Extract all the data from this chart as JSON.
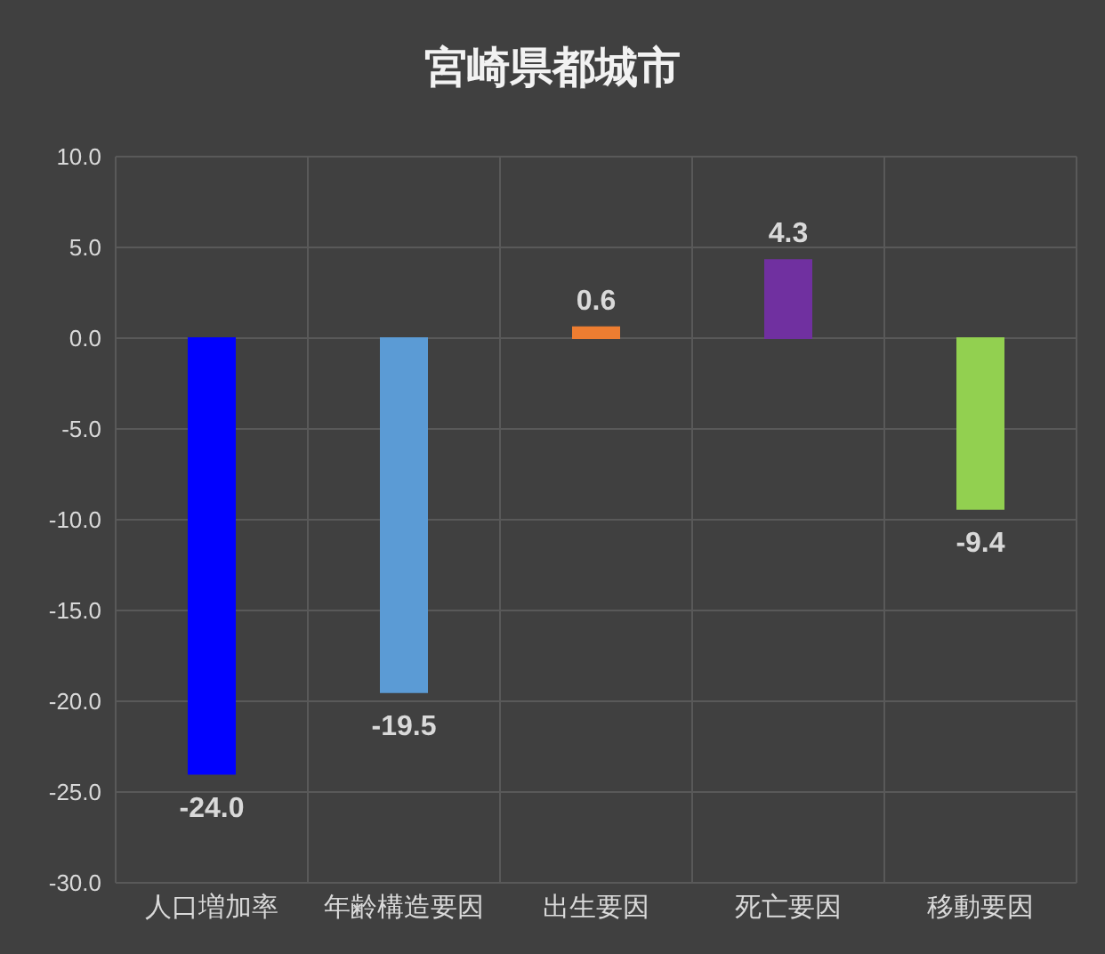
{
  "chart_data": {
    "type": "bar",
    "title": "宮崎県都城市",
    "categories": [
      "人口増加率",
      "年齢構造要因",
      "出生要因",
      "死亡要因",
      "移動要因"
    ],
    "values": [
      -24.0,
      -19.5,
      0.6,
      4.3,
      -9.4
    ],
    "value_labels": [
      "-24.0",
      "-19.5",
      "0.6",
      "4.3",
      "-9.4"
    ],
    "colors": [
      "#0000ff",
      "#5b9bd5",
      "#ed7d31",
      "#7030a0",
      "#92d050"
    ],
    "ylim": [
      -30,
      10
    ],
    "yticks": [
      {
        "value": 10,
        "label": "10.0"
      },
      {
        "value": 5,
        "label": "5.0"
      },
      {
        "value": 0,
        "label": "0.0"
      },
      {
        "value": -5,
        "label": "-5.0"
      },
      {
        "value": -10,
        "label": "-10.0"
      },
      {
        "value": -15,
        "label": "-15.0"
      },
      {
        "value": -20,
        "label": "-20.0"
      },
      {
        "value": -25,
        "label": "-25.0"
      },
      {
        "value": -30,
        "label": "-30.0"
      }
    ],
    "grid": true
  }
}
